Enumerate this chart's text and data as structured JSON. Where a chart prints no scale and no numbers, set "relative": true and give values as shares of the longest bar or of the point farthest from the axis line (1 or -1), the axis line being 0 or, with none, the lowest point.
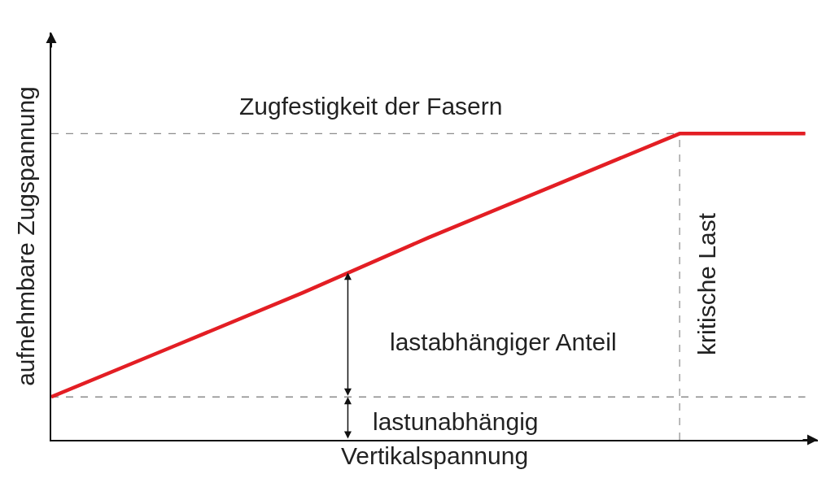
{
  "chart_data": {
    "type": "line",
    "relative": true,
    "xlabel": "Vertikalspannung",
    "ylabel": "aufnehmbare Zugspannung",
    "categories": [
      null,
      null,
      null,
      null,
      null,
      null,
      null
    ],
    "series": [
      {
        "color": "#e31e24",
        "values": [
          0.14,
          0.31,
          0.48,
          0.66,
          0.83,
          1,
          1
        ]
      }
    ],
    "ref_lines": [
      {
        "axis": "y",
        "value": 1,
        "label": "Zugfestigkeit der Fasern",
        "color": "#8c8c8c",
        "line_style": "dashed"
      },
      {
        "axis": "y",
        "value": 0.14,
        "label": "lastunabhängig",
        "color": "#8c8c8c",
        "line_style": "dashed"
      }
    ],
    "annotations": [
      "lastabhängiger Anteil",
      "kritische Last"
    ],
    "marker": "none",
    "line_style": "solid"
  }
}
